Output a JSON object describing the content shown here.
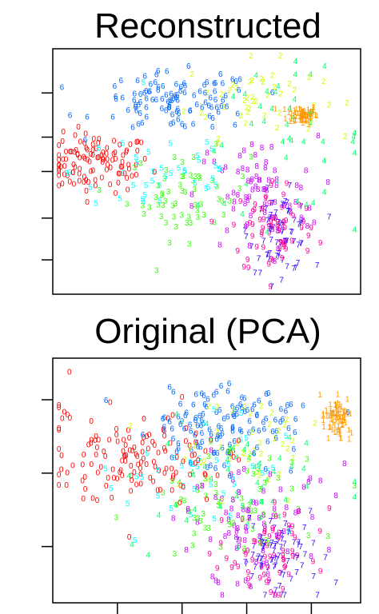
{
  "chart_data": [
    {
      "type": "scatter",
      "title": "Reconstructed",
      "plot_ref": "top",
      "xlim": [
        0,
        100
      ],
      "ylim": [
        0,
        100
      ],
      "y_ticks": [
        14,
        31,
        50,
        64,
        82
      ],
      "x_ticks": [],
      "series": [
        {
          "label": "0",
          "color": "#FF0000",
          "centroid": [
            14,
            53
          ],
          "spread": [
            9,
            6
          ],
          "count": 110
        },
        {
          "label": "1",
          "color": "#FF9900",
          "centroid": [
            81,
            73
          ],
          "spread": [
            2.5,
            2
          ],
          "count": 70
        },
        {
          "label": "2",
          "color": "#CCFF00",
          "centroid": [
            65,
            80
          ],
          "spread": [
            11,
            8
          ],
          "count": 45
        },
        {
          "label": "3",
          "color": "#33FF00",
          "centroid": [
            44,
            40
          ],
          "spread": [
            10,
            9
          ],
          "count": 60
        },
        {
          "label": "4",
          "color": "#00FF66",
          "centroid": [
            75,
            62
          ],
          "spread": [
            14,
            14
          ],
          "count": 45
        },
        {
          "label": "5",
          "color": "#00FFFF",
          "centroid": [
            36,
            50
          ],
          "spread": [
            15,
            11
          ],
          "count": 40
        },
        {
          "label": "6",
          "color": "#0066FF",
          "centroid": [
            40,
            78
          ],
          "spread": [
            13,
            6
          ],
          "count": 110
        },
        {
          "label": "7",
          "color": "#3300FF",
          "centroid": [
            74,
            25
          ],
          "spread": [
            5,
            8
          ],
          "count": 70
        },
        {
          "label": "8",
          "color": "#CC00FF",
          "centroid": [
            66,
            40
          ],
          "spread": [
            10,
            12
          ],
          "count": 70
        },
        {
          "label": "9",
          "color": "#FF0099",
          "centroid": [
            72,
            27
          ],
          "spread": [
            7,
            10
          ],
          "count": 70
        }
      ]
    },
    {
      "type": "scatter",
      "title": "Original (PCA)",
      "plot_ref": "bottom",
      "xlim": [
        0,
        100
      ],
      "ylim": [
        0,
        100
      ],
      "y_ticks": [
        23,
        53,
        83
      ],
      "x_ticks": [
        21,
        42,
        63,
        84
      ],
      "series": [
        {
          "label": "0",
          "color": "#FF0000",
          "centroid": [
            27,
            59
          ],
          "spread": [
            14,
            10
          ],
          "count": 140
        },
        {
          "label": "1",
          "color": "#FF9900",
          "centroid": [
            92,
            75
          ],
          "spread": [
            2.5,
            4
          ],
          "count": 75
        },
        {
          "label": "2",
          "color": "#CCFF00",
          "centroid": [
            65,
            63
          ],
          "spread": [
            12,
            10
          ],
          "count": 45
        },
        {
          "label": "3",
          "color": "#33FF00",
          "centroid": [
            57,
            39
          ],
          "spread": [
            14,
            12
          ],
          "count": 60
        },
        {
          "label": "4",
          "color": "#00FF66",
          "centroid": [
            62,
            50
          ],
          "spread": [
            16,
            13
          ],
          "count": 50
        },
        {
          "label": "5",
          "color": "#00FFFF",
          "centroid": [
            53,
            54
          ],
          "spread": [
            14,
            12
          ],
          "count": 45
        },
        {
          "label": "6",
          "color": "#0066FF",
          "centroid": [
            55,
            73
          ],
          "spread": [
            12,
            8
          ],
          "count": 130
        },
        {
          "label": "7",
          "color": "#3300FF",
          "centroid": [
            73,
            17
          ],
          "spread": [
            7,
            9
          ],
          "count": 75
        },
        {
          "label": "8",
          "color": "#CC00FF",
          "centroid": [
            62,
            33
          ],
          "spread": [
            13,
            12
          ],
          "count": 75
        },
        {
          "label": "9",
          "color": "#FF0099",
          "centroid": [
            70,
            21
          ],
          "spread": [
            9,
            10
          ],
          "count": 65
        }
      ]
    }
  ]
}
